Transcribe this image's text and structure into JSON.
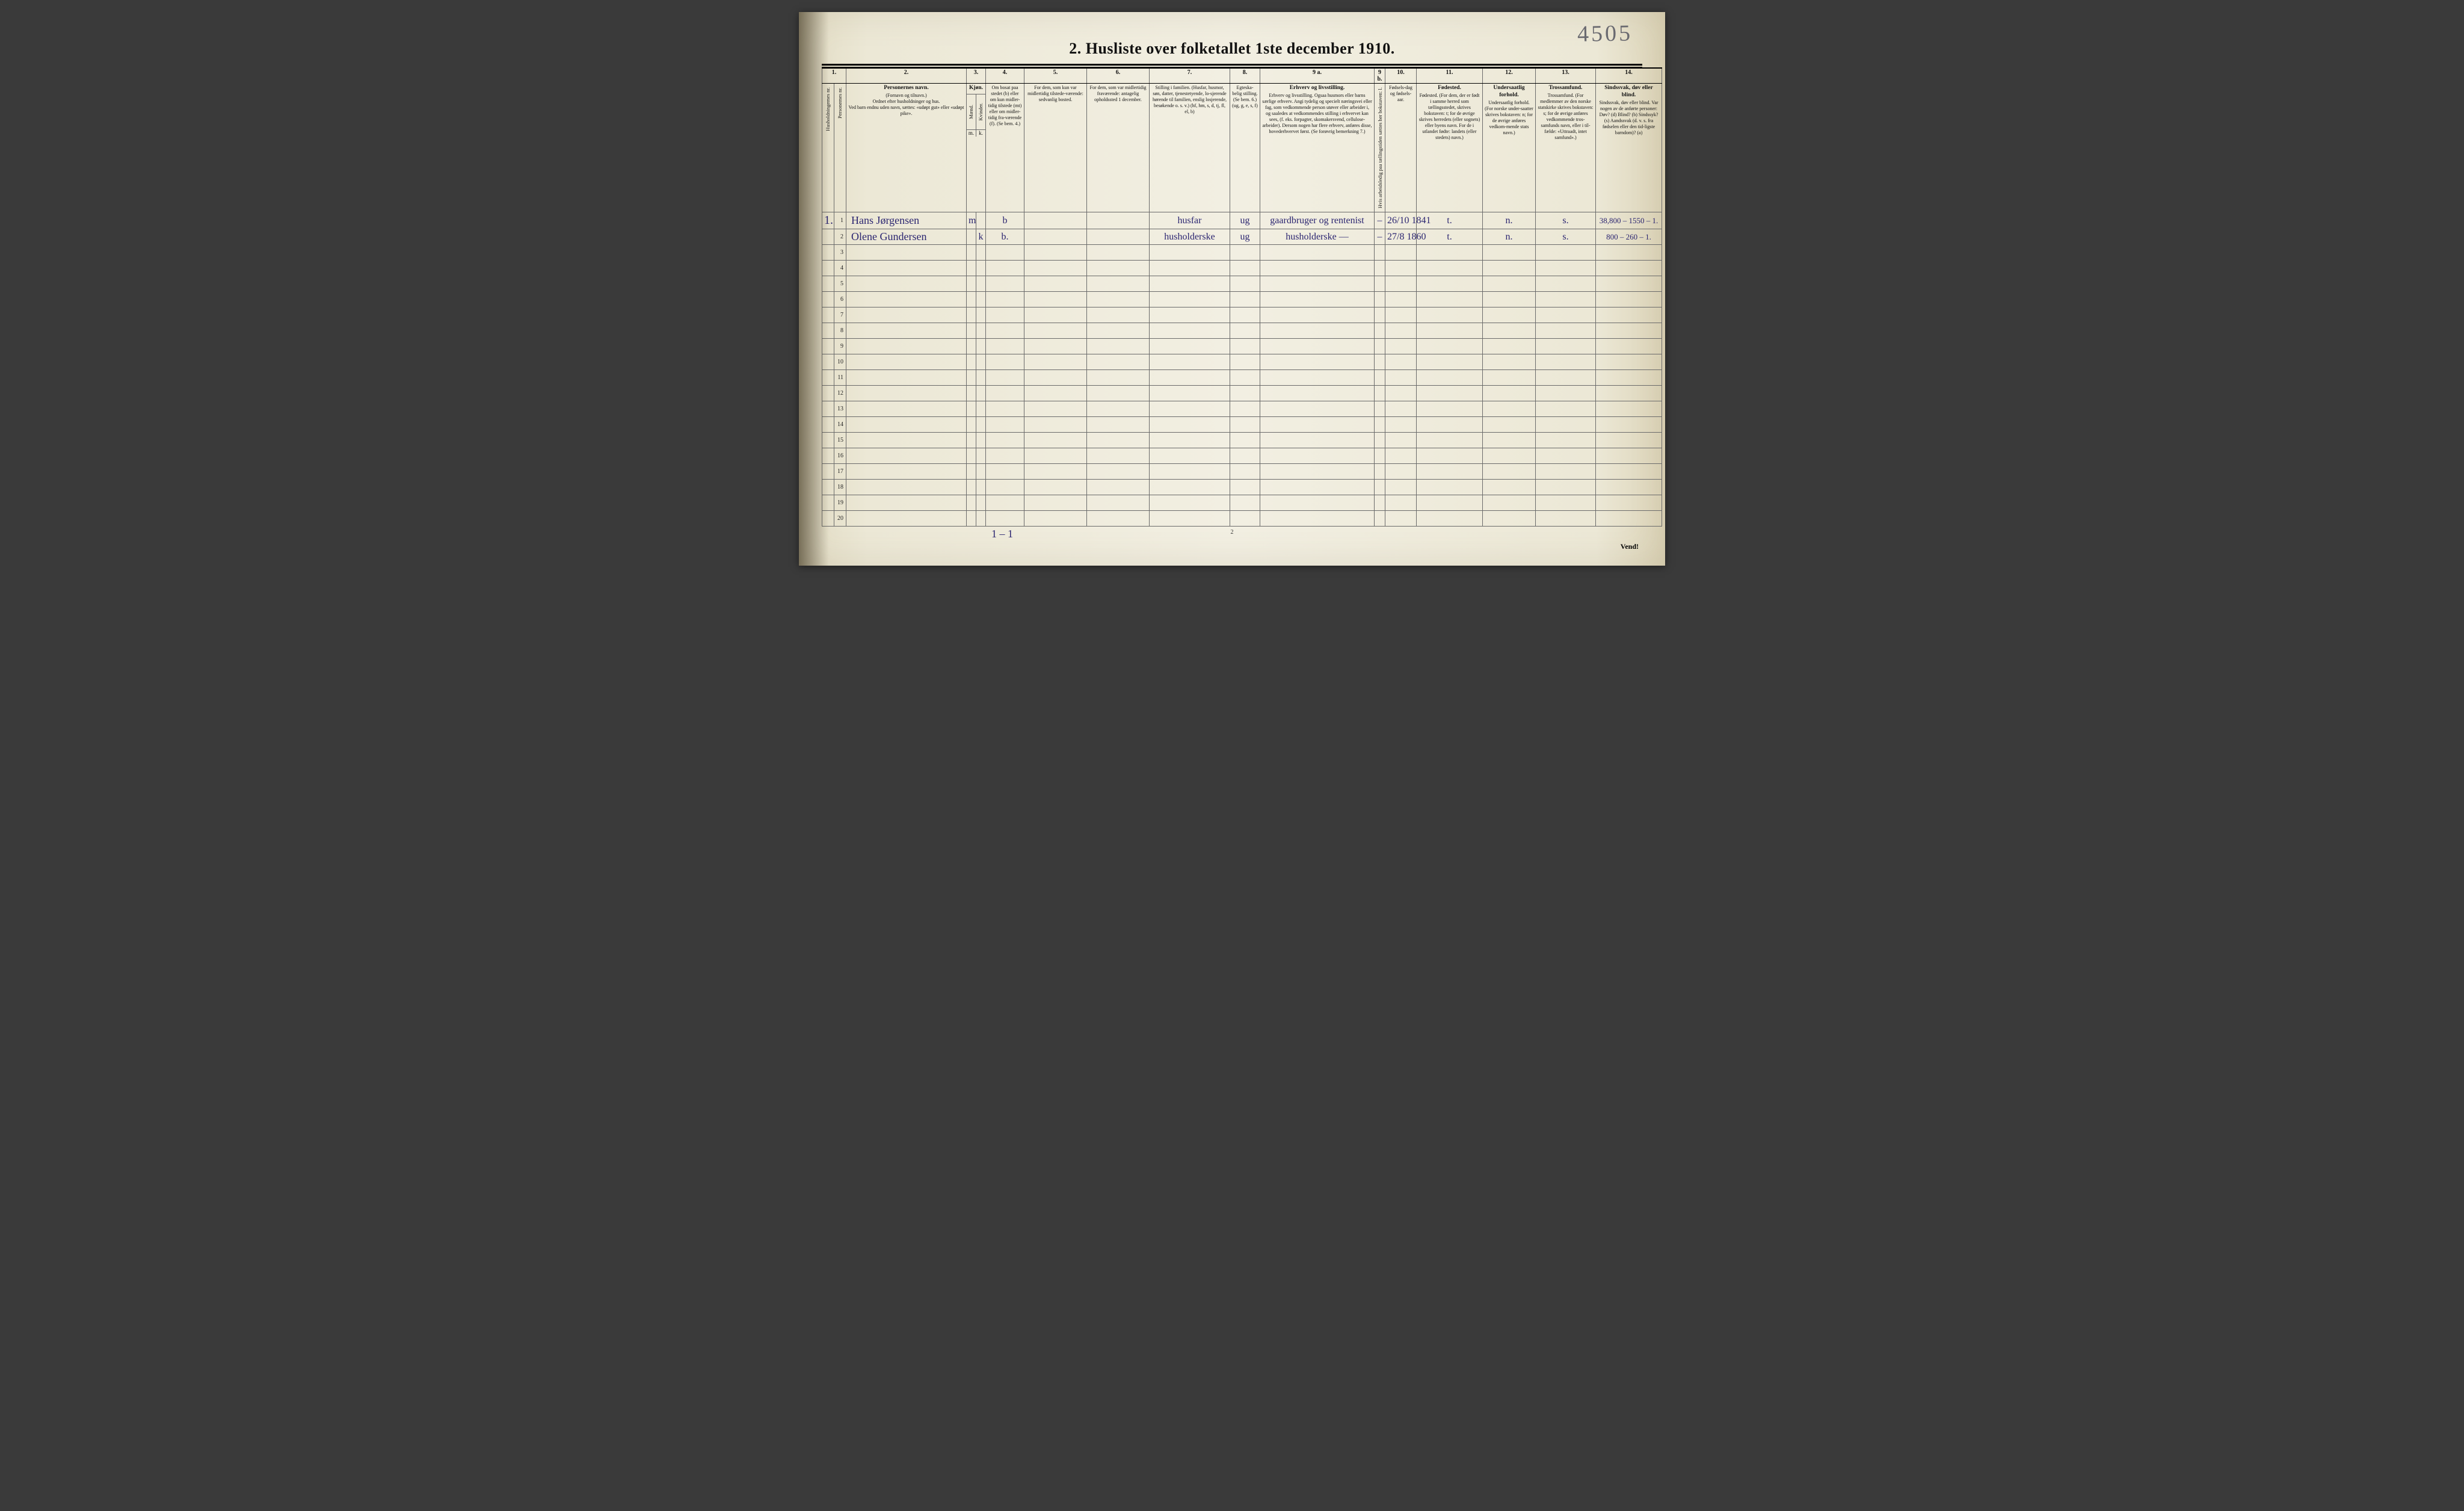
{
  "handwritten_top_right": "4505",
  "title": "2.  Husliste over folketallet 1ste december 1910.",
  "column_numbers": [
    "1.",
    "2.",
    "3.",
    "4.",
    "5.",
    "6.",
    "7.",
    "8.",
    "9 a.",
    "9 b.",
    "10.",
    "11.",
    "12.",
    "13.",
    "14."
  ],
  "headers": {
    "col1a": "Husholdningernes nr.",
    "col1b": "Personernes nr.",
    "col2": {
      "title": "Personernes navn.",
      "sub1": "(Fornavn og tilnavn.)",
      "sub2": "Ordnet efter husholdninger og hus.",
      "sub3": "Ved barn endnu uden navn, sættes: «udøpt gut» eller «udøpt pike»."
    },
    "col3": {
      "title": "Kjøn.",
      "m": "Mænd.",
      "k": "Kvinder.",
      "mk_l": "m.",
      "mk_r": "k."
    },
    "col4": "Om bosat paa stedet (b) eller om kun midler-tidig tilstede (mt) eller om midler-tidig fra-værende (f). (Se bem. 4.)",
    "col5": "For dem, som kun var midlertidig tilstede-værende: sedvanlig bosted.",
    "col6": "For dem, som var midlertidig fraværende: antagelig opholdssted 1 december.",
    "col7": "Stilling i familien. (Husfar, husmor, søn, datter, tjenestetyende, lo-sjerende hørende til familien, enslig losjerende, besøkende o. s. v.) (hf, hm, s, d, tj, fl, el, b)",
    "col8": "Egteska-belig stilling. (Se bem. 6.) (ug, g, e, s, f)",
    "col9a": "Erhverv og livsstilling. Ogsaa husmors eller barns særlige erhverv. Angi tydelig og specielt næringsvei eller fag, som vedkommende person utøver eller arbeider i, og saaledes at vedkommendes stilling i erhvervet kan sees, (f. eks. forpagter, skomakersvend, cellulose-arbeider). Dersom nogen har flere erhverv, anføres disse, hovederhvervet først. (Se forøvrig bemerkning 7.)",
    "col9b": "Hvis arbeidsledig paa tællingstiden sættes her bokstaven: l.",
    "col10": "Fødsels-dag og fødsels-aar.",
    "col11": "Fødested. (For dem, der er født i samme herred som tællingsstedet, skrives bokstaven: t; for de øvrige skrives herredets (eller sognets) eller byens navn. For de i utlandet fødte: landets (eller stedets) navn.)",
    "col12": "Undersaatlig forhold. (For norske under-saatter skrives bokstaven: n; for de øvrige anføres vedkom-mende stats navn.)",
    "col13": "Trossamfund. (For medlemmer av den norske statskirke skrives bokstaven: s; for de øvrige anføres vedkommende tros-samfunds navn, eller i til-fælde: «Uttraadt, intet samfund».)",
    "col14": "Sindssvak, døv eller blind. Var nogen av de anførte personer: Døv? (d) Blind? (b) Sindssyk? (s) Aandssvak (d. v. s. fra fødselen eller den tid-ligste barndom)? (a)"
  },
  "rows": [
    {
      "hh": "1.",
      "pn": "1",
      "name": "Hans Jørgensen",
      "m": "m",
      "k": "",
      "c4": "b",
      "c5": "",
      "c6": "",
      "c7": "husfar",
      "c8": "ug",
      "c9a": "gaardbruger og rentenist",
      "c9b": "–",
      "c10": "26/10 1841",
      "c11": "t.",
      "c12": "n.",
      "c13": "s.",
      "c14": "38,800 – 1550 – 1."
    },
    {
      "hh": "",
      "pn": "2",
      "name": "Olene Gundersen",
      "m": "",
      "k": "k",
      "c4": "b.",
      "c5": "",
      "c6": "",
      "c7": "husholderske",
      "c8": "ug",
      "c9a": "husholderske     —",
      "c9b": "–",
      "c10": "27/8 1860",
      "c11": "t.",
      "c12": "n.",
      "c13": "s.",
      "c14": "800 – 260 – 1."
    }
  ],
  "blank_row_numbers": [
    "3",
    "4",
    "5",
    "6",
    "7",
    "8",
    "9",
    "10",
    "11",
    "12",
    "13",
    "14",
    "15",
    "16",
    "17",
    "18",
    "19",
    "20"
  ],
  "footer": {
    "page_number": "2",
    "count": "1 – 1",
    "vend": "Vend!"
  },
  "colors": {
    "ink_print": "#111111",
    "ink_hand": "#2a2470",
    "ink_pencil": "#6a6a70",
    "paper_mid": "#f2efe2",
    "rule": "#6a6a6a"
  }
}
